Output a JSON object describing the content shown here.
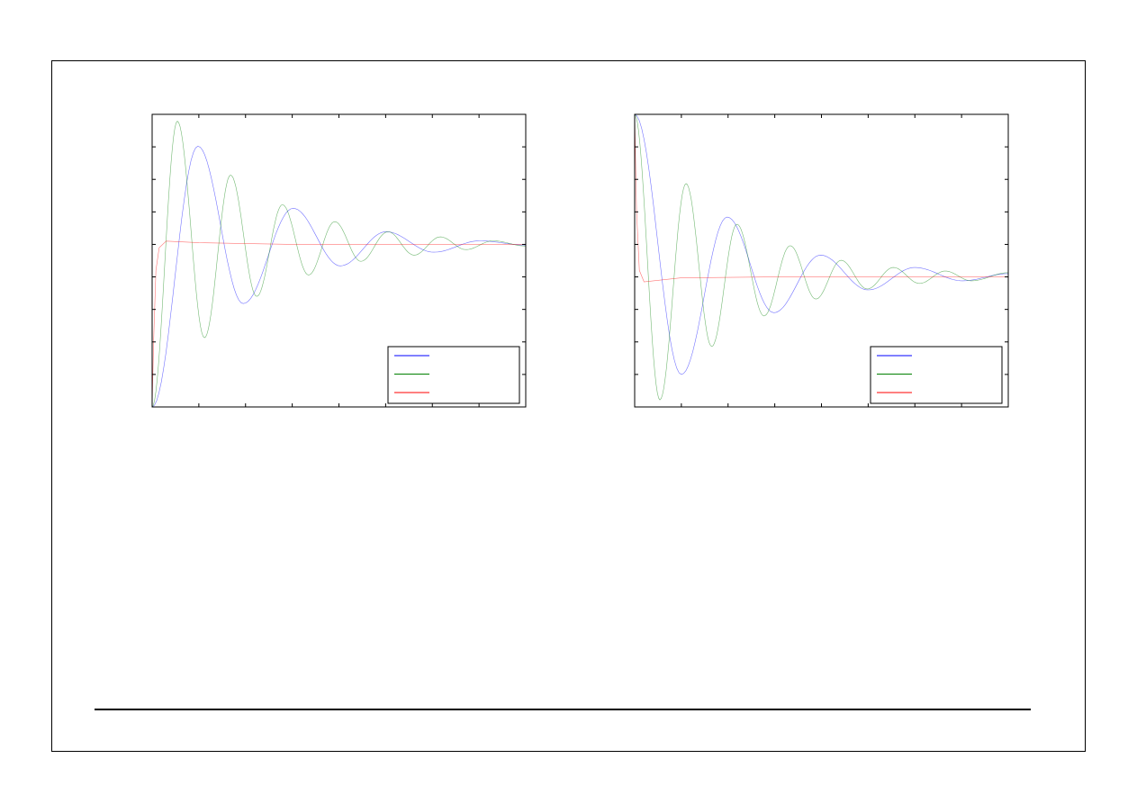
{
  "colors": {
    "blue": "#0000ff",
    "green": "#008000",
    "red": "#ff0000"
  },
  "chart_data": [
    {
      "type": "line",
      "title": "",
      "xlabel": "",
      "ylabel": "",
      "xlim": [
        0,
        8
      ],
      "ylim": [
        0,
        9
      ],
      "xticks": 8,
      "yticks": 9,
      "grid": false,
      "legend": "bottom-right",
      "legend_entries": 3,
      "series": [
        {
          "color": "blue",
          "points": [
            [
              0,
              0
            ],
            [
              0.98,
              8.02
            ],
            [
              1.95,
              3.18
            ],
            [
              3.02,
              6.11
            ],
            [
              4.03,
              4.34
            ],
            [
              5.01,
              5.39
            ],
            [
              6.03,
              4.76
            ],
            [
              7.01,
              5.11
            ],
            [
              8,
              4.98
            ]
          ]
        },
        {
          "color": "green",
          "points": [
            [
              0,
              0
            ],
            [
              0.54,
              8.79
            ],
            [
              1.12,
              2.13
            ],
            [
              1.68,
              7.13
            ],
            [
              2.24,
              3.4
            ],
            [
              2.79,
              6.22
            ],
            [
              3.35,
              4.06
            ],
            [
              3.91,
              5.7
            ],
            [
              4.47,
              4.48
            ],
            [
              5.05,
              5.39
            ],
            [
              5.61,
              4.67
            ],
            [
              6.17,
              5.23
            ],
            [
              6.72,
              4.84
            ],
            [
              7.3,
              5.11
            ],
            [
              8,
              4.95
            ]
          ]
        },
        {
          "color": "red",
          "points": [
            [
              0,
              0
            ],
            [
              0.03,
              2
            ],
            [
              0.08,
              4.2
            ],
            [
              0.15,
              4.9
            ],
            [
              0.3,
              5.1
            ],
            [
              1,
              5.05
            ],
            [
              3,
              5.0
            ],
            [
              8,
              5.0
            ]
          ],
          "smooth": false
        }
      ]
    },
    {
      "type": "line",
      "title": "",
      "xlabel": "",
      "ylabel": "",
      "xlim": [
        0,
        8
      ],
      "ylim": [
        0,
        9
      ],
      "xticks": 8,
      "yticks": 9,
      "grid": false,
      "legend": "bottom-right",
      "legend_entries": 3,
      "series": [
        {
          "color": "blue",
          "points": [
            [
              0,
              9
            ],
            [
              1,
              1
            ],
            [
              1.98,
              5.84
            ],
            [
              2.98,
              2.9
            ],
            [
              3.98,
              4.67
            ],
            [
              5,
              3.6
            ],
            [
              6,
              4.29
            ],
            [
              7.02,
              3.88
            ],
            [
              8,
              4.1
            ]
          ]
        },
        {
          "color": "green",
          "points": [
            [
              0,
              9
            ],
            [
              0.54,
              0.22
            ],
            [
              1.1,
              6.87
            ],
            [
              1.65,
              1.86
            ],
            [
              2.19,
              5.62
            ],
            [
              2.77,
              2.8
            ],
            [
              3.33,
              4.96
            ],
            [
              3.88,
              3.32
            ],
            [
              4.42,
              4.51
            ],
            [
              4.98,
              3.63
            ],
            [
              5.54,
              4.29
            ],
            [
              6.1,
              3.8
            ],
            [
              6.65,
              4.18
            ],
            [
              7.21,
              3.88
            ],
            [
              8,
              4.13
            ]
          ]
        },
        {
          "color": "red",
          "points": [
            [
              0,
              9
            ],
            [
              0.04,
              6
            ],
            [
              0.1,
              4.2
            ],
            [
              0.2,
              3.85
            ],
            [
              1,
              3.97
            ],
            [
              3,
              4.0
            ],
            [
              8,
              4.0
            ]
          ],
          "smooth": false
        }
      ]
    }
  ]
}
